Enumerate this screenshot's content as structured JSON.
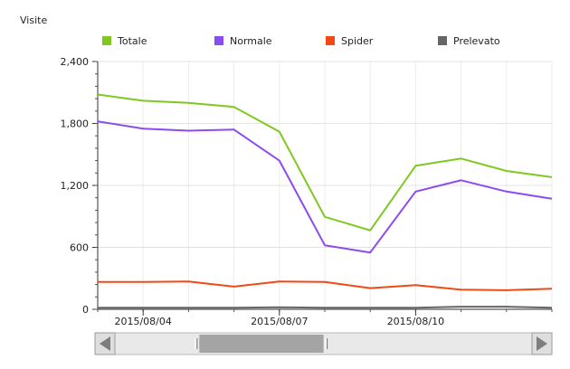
{
  "chart_data": {
    "type": "line",
    "ylabel": "Visite",
    "xlabel": "",
    "title": "",
    "ylim": [
      0,
      2400
    ],
    "yticks": [
      0,
      600,
      1200,
      1800,
      2400
    ],
    "ytick_labels": [
      "0",
      "600",
      "1,200",
      "1,800",
      "2,400"
    ],
    "xtick_labels": [
      "2015/08/04",
      "2015/08/07",
      "2015/08/10"
    ],
    "xtick_dates": [
      "2015/08/04",
      "2015/08/07",
      "2015/08/10"
    ],
    "x": [
      "2015/08/03",
      "2015/08/04",
      "2015/08/05",
      "2015/08/06",
      "2015/08/07",
      "2015/08/08",
      "2015/08/09",
      "2015/08/10",
      "2015/08/11",
      "2015/08/12",
      "2015/08/13"
    ],
    "x_end": "2015/08/13",
    "grid": true,
    "legend_position": "top",
    "series": [
      {
        "name": "Totale",
        "color": "#7ec820",
        "values": [
          2080,
          2020,
          2000,
          1960,
          1720,
          895,
          765,
          1390,
          1460,
          1340,
          1280
        ]
      },
      {
        "name": "Normale",
        "color": "#8c4bf0",
        "values": [
          1820,
          1750,
          1730,
          1740,
          1440,
          620,
          550,
          1140,
          1250,
          1140,
          1070
        ]
      },
      {
        "name": "Spider",
        "color": "#f04a14",
        "values": [
          265,
          265,
          270,
          220,
          270,
          265,
          205,
          235,
          190,
          185,
          200
        ]
      },
      {
        "name": "Prelevato",
        "color": "#666666",
        "values": [
          15,
          15,
          15,
          15,
          20,
          15,
          15,
          15,
          25,
          25,
          15
        ]
      }
    ]
  },
  "scrollbar": {
    "left_arrow_icon": "triangle-left-icon",
    "right_arrow_icon": "triangle-right-icon",
    "thumb_grip_icon": "grip-line-icon",
    "thumb_start_fraction": 0.12,
    "thumb_end_fraction": 0.42
  }
}
